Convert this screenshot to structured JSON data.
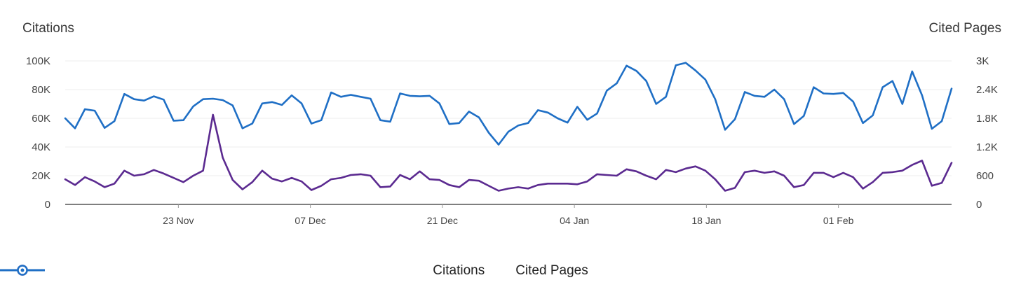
{
  "chart_data": {
    "type": "line",
    "left_axis_title": "Citations",
    "right_axis_title": "Cited Pages",
    "left_ticks": [
      "0",
      "20K",
      "40K",
      "60K",
      "80K",
      "100K"
    ],
    "right_ticks": [
      "0",
      "600",
      "1.2K",
      "1.8K",
      "2.4K",
      "3K"
    ],
    "ylim_left": [
      0,
      100000
    ],
    "ylim_right": [
      0,
      3000
    ],
    "x_range": [
      "2024-11-11",
      "2025-02-13"
    ],
    "x_ticks": [
      {
        "date": "2024-11-23",
        "label": "23 Nov"
      },
      {
        "date": "2024-12-07",
        "label": "07 Dec"
      },
      {
        "date": "2024-12-21",
        "label": "21 Dec"
      },
      {
        "date": "2025-01-04",
        "label": "04 Jan"
      },
      {
        "date": "2025-01-18",
        "label": "18 Jan"
      },
      {
        "date": "2025-02-01",
        "label": "01 Feb"
      }
    ],
    "grid": "horizontal",
    "legend_position": "bottom-center",
    "series": [
      {
        "name": "Citations",
        "axis": "left",
        "color": "#5b2a90",
        "values": [
          17500,
          13500,
          19000,
          16000,
          12000,
          14500,
          23500,
          20000,
          21000,
          24000,
          21500,
          18500,
          15500,
          20000,
          23500,
          62500,
          32500,
          17000,
          10500,
          15500,
          23500,
          18000,
          16000,
          18500,
          16000,
          10000,
          13000,
          17500,
          18500,
          20500,
          21000,
          20000,
          12000,
          12500,
          20500,
          17500,
          23000,
          17500,
          17000,
          13500,
          12000,
          17000,
          16500,
          13000,
          9500,
          11000,
          12000,
          11000,
          13500,
          14500,
          14500,
          14500,
          14000,
          16000,
          21000,
          20500,
          20000,
          24500,
          23000,
          20000,
          17500,
          24000,
          22500,
          25000,
          26500,
          23500,
          17500,
          9500,
          11500,
          22500,
          23500,
          22000,
          23000,
          20000,
          12000,
          13500,
          22000,
          22000,
          19000,
          22000,
          19000,
          11000,
          15500,
          22000,
          22500,
          23500,
          27500,
          30500,
          13000,
          15000,
          29000
        ]
      },
      {
        "name": "Cited Pages",
        "axis": "right",
        "color": "#1f6fc5",
        "values": [
          1800,
          1590,
          1990,
          1960,
          1600,
          1740,
          2310,
          2200,
          2170,
          2260,
          2190,
          1750,
          1760,
          2050,
          2200,
          2210,
          2180,
          2070,
          1590,
          1690,
          2110,
          2140,
          2080,
          2280,
          2110,
          1690,
          1760,
          2340,
          2250,
          2290,
          2250,
          2210,
          1760,
          1730,
          2320,
          2270,
          2260,
          2270,
          2110,
          1680,
          1700,
          1940,
          1820,
          1500,
          1250,
          1520,
          1650,
          1700,
          1970,
          1920,
          1800,
          1710,
          2040,
          1770,
          1900,
          2380,
          2530,
          2900,
          2790,
          2580,
          2100,
          2250,
          2910,
          2960,
          2800,
          2610,
          2200,
          1560,
          1780,
          2350,
          2270,
          2250,
          2400,
          2200,
          1680,
          1850,
          2450,
          2320,
          2310,
          2330,
          2150,
          1700,
          1860,
          2450,
          2580,
          2100,
          2780,
          2280,
          1580,
          1740,
          2420
        ]
      }
    ]
  }
}
